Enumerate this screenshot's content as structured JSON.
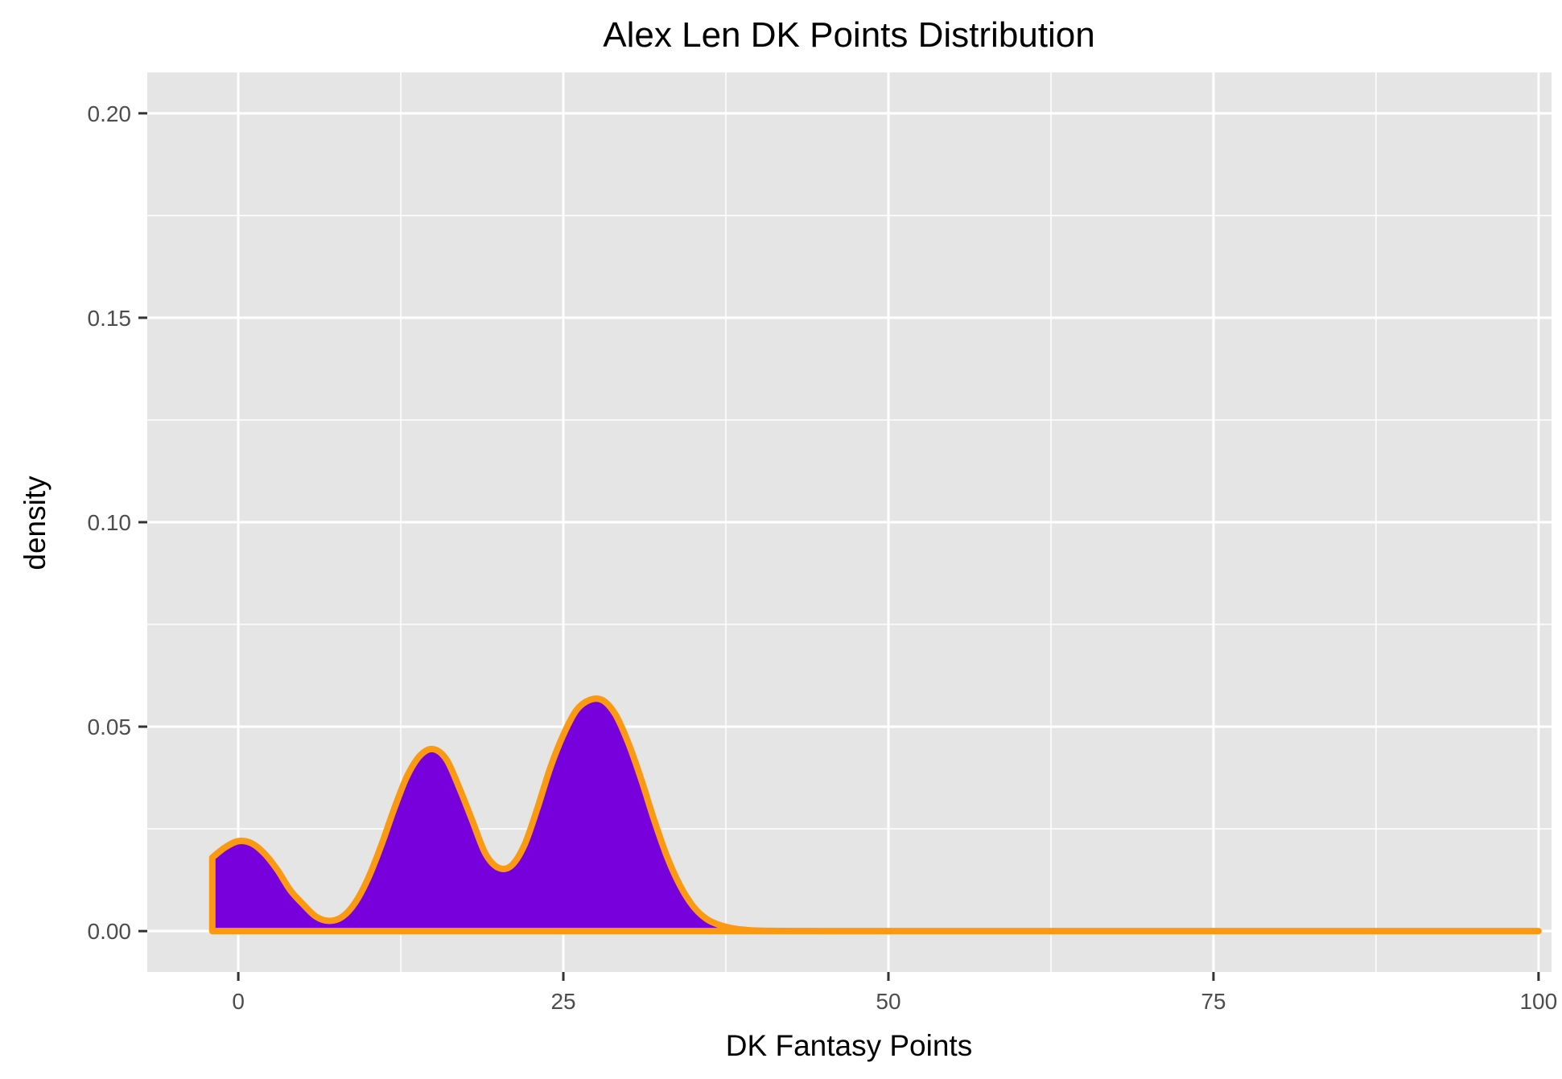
{
  "chart_data": {
    "type": "area",
    "title": "Alex Len DK Points Distribution",
    "xlabel": "DK Fantasy Points",
    "ylabel": "density",
    "xlim": [
      -7,
      101
    ],
    "ylim": [
      -0.01,
      0.21
    ],
    "x_ticks": [
      0,
      25,
      50,
      75,
      100
    ],
    "x_tick_labels": [
      "0",
      "25",
      "50",
      "75",
      "100"
    ],
    "y_ticks": [
      0,
      0.05,
      0.1,
      0.15,
      0.2
    ],
    "y_tick_labels": [
      "0.00",
      "0.05",
      "0.10",
      "0.15",
      "0.20"
    ],
    "grid": true,
    "series": [
      {
        "x": [
          -2,
          -1,
          0,
          1,
          2,
          3,
          4,
          5,
          6,
          7,
          8,
          9,
          10,
          11,
          12,
          13,
          14,
          15,
          16,
          17,
          18,
          19,
          20,
          21,
          22,
          23,
          24,
          25,
          26,
          27,
          28,
          29,
          30,
          31,
          32,
          33,
          34,
          35,
          36,
          37,
          38,
          39,
          40,
          42,
          45,
          50,
          60,
          70,
          80,
          90,
          100
        ],
        "y": [
          0.018,
          0.0205,
          0.022,
          0.0215,
          0.019,
          0.015,
          0.01,
          0.0065,
          0.0035,
          0.0025,
          0.0035,
          0.007,
          0.013,
          0.021,
          0.03,
          0.038,
          0.043,
          0.0445,
          0.042,
          0.035,
          0.027,
          0.019,
          0.0155,
          0.016,
          0.021,
          0.03,
          0.04,
          0.048,
          0.054,
          0.0565,
          0.0565,
          0.053,
          0.046,
          0.037,
          0.027,
          0.018,
          0.011,
          0.006,
          0.003,
          0.0015,
          0.0007,
          0.0003,
          0.0001,
          3e-05,
          0,
          0,
          0,
          0,
          0,
          0,
          0
        ]
      }
    ],
    "colors": {
      "fill": "#7700dd",
      "line": "#fb9a12",
      "panel": "#e5e5e5",
      "grid": "#ffffff",
      "tick": "#333333"
    }
  }
}
